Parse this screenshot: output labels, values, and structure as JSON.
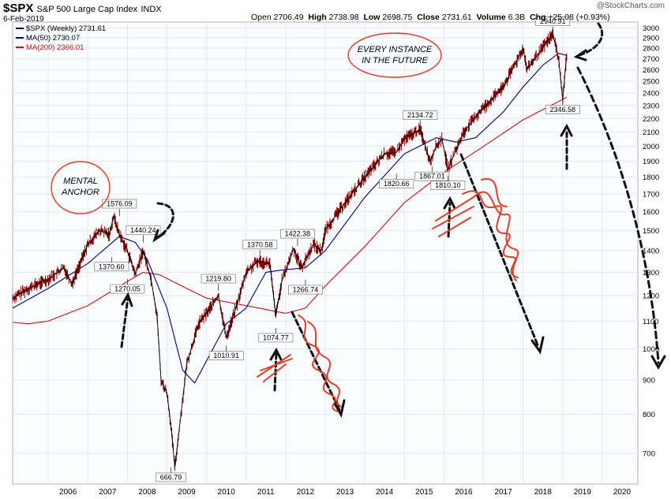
{
  "header": {
    "ticker": "$SPX",
    "description": "S&P 500 Large Cap Index",
    "exchange": "INDX",
    "date": "6-Feb-2019",
    "open_label": "Open",
    "open": "2706.49",
    "high_label": "High",
    "high": "2738.98",
    "low_label": "Low",
    "low": "2698.75",
    "close_label": "Close",
    "close": "2731.61",
    "volume_label": "Volume",
    "volume": "6.3B",
    "chg_label": "Chg",
    "chg": "+25.08 (+0.93%)",
    "watermark": "@StockCharts.com"
  },
  "legend": [
    {
      "label": "$SPX (Weekly) 2731.61",
      "color": "#000000"
    },
    {
      "label": "MA(50) 2730.07",
      "color": "#000080"
    },
    {
      "label": "MA(200) 2366.01",
      "color": "#d01010"
    }
  ],
  "annotations": {
    "mental_anchor": [
      "MENTAL",
      "ANCHOR"
    ],
    "every_instance": [
      "EVERY INSTANCE",
      "IN THE FUTURE"
    ]
  },
  "chart_data": {
    "type": "line",
    "scale": "log",
    "ylim": [
      630,
      3060
    ],
    "y_ticks": [
      700,
      800,
      900,
      1000,
      1100,
      1200,
      1300,
      1400,
      1500,
      1600,
      1700,
      1800,
      1900,
      2000,
      2100,
      2200,
      2300,
      2400,
      2500,
      2600,
      2700,
      2800,
      2900,
      3000
    ],
    "x_ticks": [
      "2006",
      "2007",
      "2008",
      "2009",
      "2010",
      "2011",
      "2012",
      "2013",
      "2014",
      "2015",
      "2016",
      "2017",
      "2018",
      "2019",
      "2020"
    ],
    "xlim": [
      2005.1,
      2020.9
    ],
    "grid": true,
    "series": [
      {
        "name": "$SPX (Weekly)",
        "color": "#000000",
        "x": [
          2005.1,
          2005.5,
          2006.0,
          2006.4,
          2006.6,
          2007.0,
          2007.3,
          2007.55,
          2007.65,
          2007.8,
          2008.0,
          2008.2,
          2008.4,
          2008.6,
          2008.75,
          2008.85,
          2009.0,
          2009.1,
          2009.2,
          2009.5,
          2009.8,
          2010.0,
          2010.3,
          2010.5,
          2010.8,
          2011.0,
          2011.3,
          2011.6,
          2011.75,
          2011.9,
          2012.2,
          2012.4,
          2012.7,
          2012.9,
          2013.0,
          2013.5,
          2014.0,
          2014.5,
          2014.8,
          2015.0,
          2015.4,
          2015.65,
          2015.8,
          2015.95,
          2016.1,
          2016.5,
          2016.9,
          2017.5,
          2018.0,
          2018.1,
          2018.3,
          2018.75,
          2018.9,
          2019.0,
          2019.1
        ],
        "values": [
          1190,
          1230,
          1270,
          1320,
          1250,
          1430,
          1500,
          1480,
          1576.09,
          1480,
          1400,
          1290,
          1400,
          1270,
          1120,
          900,
          860,
          770,
          666.79,
          950,
          1090,
          1130,
          1200,
          1040,
          1180,
          1300,
          1350,
          1340,
          1120,
          1260,
          1410,
          1320,
          1430,
          1400,
          1500,
          1650,
          1800,
          1950,
          1960,
          2050,
          2120,
          1900,
          2000,
          2050,
          1850,
          2100,
          2250,
          2450,
          2800,
          2600,
          2700,
          2940.91,
          2700,
          2346.58,
          2731.61
        ]
      },
      {
        "name": "MA(50)",
        "color": "#000080",
        "x": [
          2005.1,
          2006.0,
          2007.0,
          2007.8,
          2008.2,
          2008.5,
          2009.0,
          2009.4,
          2009.7,
          2010.0,
          2010.5,
          2011.0,
          2011.5,
          2011.9,
          2012.5,
          2013.0,
          2014.0,
          2015.0,
          2015.8,
          2016.3,
          2016.8,
          2017.5,
          2018.0,
          2018.5,
          2018.9,
          2019.1
        ],
        "values": [
          1150,
          1230,
          1340,
          1470,
          1440,
          1360,
          1150,
          930,
          890,
          960,
          1090,
          1150,
          1300,
          1310,
          1320,
          1400,
          1680,
          1950,
          2060,
          2030,
          2060,
          2250,
          2450,
          2640,
          2750,
          2730.07
        ]
      },
      {
        "name": "MA(200)",
        "color": "#d01010",
        "x": [
          2005.1,
          2005.5,
          2006.0,
          2007.0,
          2008.0,
          2008.4,
          2008.8,
          2009.5,
          2010.0,
          2011.0,
          2012.0,
          2012.5,
          2013.0,
          2014.0,
          2015.0,
          2016.0,
          2017.0,
          2018.0,
          2019.1
        ],
        "values": [
          1095,
          1090,
          1100,
          1160,
          1260,
          1300,
          1290,
          1230,
          1190,
          1160,
          1130,
          1150,
          1240,
          1420,
          1650,
          1830,
          2000,
          2190,
          2366.01
        ]
      }
    ],
    "labels": [
      {
        "text": "1576.09",
        "x": 2007.8,
        "y": 1576.09,
        "pos": "above"
      },
      {
        "text": "1440.24",
        "x": 2008.4,
        "y": 1440.24,
        "pos": "above"
      },
      {
        "text": "1370.60",
        "x": 2007.6,
        "y": 1370.6,
        "pos": "below"
      },
      {
        "text": "1270.05",
        "x": 2008.0,
        "y": 1270.05,
        "pos": "below"
      },
      {
        "text": "666.79",
        "x": 2009.1,
        "y": 666.79,
        "pos": "below"
      },
      {
        "text": "1219.80",
        "x": 2010.3,
        "y": 1219.8,
        "pos": "above"
      },
      {
        "text": "1010.91",
        "x": 2010.5,
        "y": 1010.91,
        "pos": "below"
      },
      {
        "text": "1370.58",
        "x": 2011.35,
        "y": 1370.58,
        "pos": "above"
      },
      {
        "text": "1074.77",
        "x": 2011.75,
        "y": 1074.77,
        "pos": "below"
      },
      {
        "text": "1422.38",
        "x": 2012.3,
        "y": 1422.38,
        "pos": "above"
      },
      {
        "text": "1266.74",
        "x": 2012.5,
        "y": 1266.74,
        "pos": "below"
      },
      {
        "text": "2134.72",
        "x": 2015.4,
        "y": 2134.72,
        "pos": "above"
      },
      {
        "text": "1820.66",
        "x": 2014.8,
        "y": 1820.66,
        "pos": "below"
      },
      {
        "text": "1867.01",
        "x": 2015.7,
        "y": 1867.01,
        "pos": "below"
      },
      {
        "text": "1810.10",
        "x": 2016.1,
        "y": 1810.1,
        "pos": "below"
      },
      {
        "text": "2940.91",
        "x": 2018.75,
        "y": 2940.91,
        "pos": "above"
      },
      {
        "text": "2346.58",
        "x": 2019.0,
        "y": 2346.58,
        "pos": "below"
      }
    ]
  }
}
